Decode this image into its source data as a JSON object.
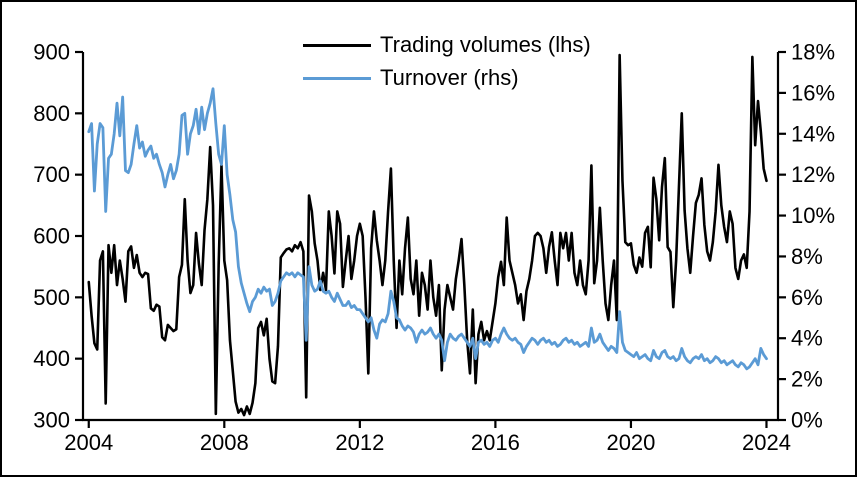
{
  "chart_data": {
    "type": "line",
    "title": "",
    "xlabel": "",
    "ylabel_left": "",
    "ylabel_right": "",
    "grid": false,
    "legend_position": "top-center",
    "x_unit": "year",
    "x_start": 2004,
    "x_step_months": 1,
    "x_range": [
      2003.83,
      2024.34
    ],
    "x_ticks": [
      2004,
      2008,
      2012,
      2016,
      2020,
      2024
    ],
    "x_tick_labels": [
      "2004",
      "2008",
      "2012",
      "2016",
      "2020",
      "2024"
    ],
    "left_axis": {
      "range": [
        300,
        900
      ],
      "tick_values": [
        300,
        400,
        500,
        600,
        700,
        800,
        900
      ],
      "tick_labels": [
        "300",
        "400",
        "500",
        "600",
        "700",
        "800",
        "900"
      ]
    },
    "right_axis": {
      "range": [
        0,
        18
      ],
      "tick_values": [
        0,
        2,
        4,
        6,
        8,
        10,
        12,
        14,
        16,
        18
      ],
      "tick_labels": [
        "0%",
        "2%",
        "4%",
        "6%",
        "8%",
        "10%",
        "12%",
        "14%",
        "16%",
        "18%"
      ]
    },
    "series": [
      {
        "name": "Trading volumes (lhs)",
        "axis": "left",
        "color": "#000000",
        "line_width": 2.6,
        "values": [
          525,
          470,
          425,
          415,
          560,
          575,
          327,
          585,
          540,
          585,
          520,
          560,
          530,
          493,
          575,
          583,
          548,
          569,
          540,
          533,
          540,
          538,
          482,
          478,
          488,
          485,
          435,
          430,
          455,
          450,
          445,
          448,
          533,
          553,
          660,
          560,
          507,
          520,
          605,
          555,
          520,
          610,
          660,
          745,
          650,
          310,
          553,
          715,
          560,
          528,
          430,
          380,
          330,
          312,
          318,
          308,
          322,
          310,
          328,
          360,
          450,
          460,
          438,
          465,
          400,
          363,
          360,
          420,
          565,
          572,
          578,
          580,
          575,
          585,
          580,
          590,
          575,
          337,
          666,
          640,
          588,
          560,
          512,
          540,
          512,
          640,
          600,
          539,
          640,
          620,
          517,
          560,
          600,
          530,
          560,
          600,
          620,
          600,
          500,
          376,
          580,
          640,
          593,
          560,
          520,
          560,
          640,
          710,
          560,
          450,
          560,
          505,
          580,
          630,
          530,
          505,
          560,
          470,
          540,
          520,
          480,
          560,
          500,
          470,
          520,
          381,
          480,
          520,
          500,
          480,
          530,
          560,
          595,
          520,
          430,
          376,
          480,
          360,
          440,
          460,
          430,
          445,
          430,
          460,
          490,
          533,
          558,
          520,
          630,
          560,
          540,
          520,
          490,
          505,
          463,
          510,
          530,
          560,
          600,
          605,
          600,
          580,
          540,
          582,
          606,
          560,
          520,
          605,
          580,
          605,
          560,
          605,
          540,
          520,
          560,
          520,
          505,
          560,
          715,
          523,
          560,
          646,
          560,
          490,
          463,
          520,
          560,
          463,
          895,
          690,
          590,
          585,
          588,
          553,
          540,
          565,
          550,
          605,
          615,
          549,
          695,
          660,
          593,
          680,
          727,
          582,
          574,
          484,
          560,
          680,
          800,
          642,
          580,
          540,
          600,
          654,
          667,
          694,
          618,
          575,
          560,
          590,
          640,
          716,
          650,
          615,
          590,
          640,
          620,
          548,
          530,
          560,
          570,
          548,
          640,
          892,
          748,
          820,
          770,
          710,
          690
        ]
      },
      {
        "name": "Turnover (rhs)",
        "axis": "right",
        "color": "#5B9BD5",
        "line_width": 2.8,
        "values": [
          14.1,
          14.5,
          11.2,
          13.5,
          14.5,
          14.3,
          10.2,
          12.8,
          13.0,
          14.0,
          15.5,
          13.9,
          15.8,
          12.2,
          12.1,
          12.5,
          13.5,
          14.4,
          13.3,
          13.6,
          12.9,
          13.2,
          13.4,
          12.8,
          13.0,
          12.5,
          12.1,
          11.4,
          12.0,
          12.5,
          11.8,
          12.2,
          13.0,
          14.9,
          15.0,
          13.0,
          14.0,
          14.4,
          15.2,
          14.0,
          15.3,
          14.2,
          15.0,
          15.5,
          16.2,
          14.5,
          13.0,
          12.5,
          14.4,
          12.0,
          11.0,
          9.8,
          9.2,
          7.5,
          6.7,
          6.2,
          5.7,
          5.3,
          5.8,
          6.0,
          6.4,
          6.2,
          6.5,
          6.3,
          6.4,
          5.6,
          5.8,
          6.2,
          6.8,
          7.0,
          7.2,
          7.1,
          7.2,
          7.0,
          7.2,
          7.1,
          7.0,
          3.9,
          7.5,
          6.6,
          6.3,
          6.4,
          6.8,
          6.3,
          6.2,
          6.3,
          6.0,
          5.8,
          6.2,
          5.9,
          5.6,
          5.6,
          5.8,
          5.5,
          5.6,
          5.4,
          5.4,
          5.2,
          5.0,
          4.8,
          5.0,
          4.4,
          4.0,
          4.7,
          4.9,
          4.8,
          5.2,
          6.3,
          5.8,
          5.0,
          4.9,
          4.6,
          4.4,
          4.6,
          4.5,
          4.3,
          3.8,
          4.2,
          4.4,
          4.2,
          4.3,
          4.5,
          4.2,
          4.0,
          4.2,
          3.9,
          2.9,
          3.8,
          4.2,
          4.0,
          3.9,
          4.1,
          4.2,
          4.0,
          3.8,
          3.6,
          4.0,
          3.0,
          3.8,
          3.9,
          3.7,
          3.8,
          3.6,
          3.9,
          4.0,
          3.8,
          4.2,
          4.5,
          4.2,
          4.0,
          3.9,
          4.0,
          3.8,
          3.7,
          3.3,
          3.6,
          3.8,
          4.0,
          3.9,
          3.7,
          3.9,
          4.0,
          3.8,
          3.9,
          3.7,
          3.8,
          3.6,
          3.7,
          3.9,
          4.0,
          3.8,
          3.9,
          3.7,
          3.8,
          3.6,
          3.7,
          3.8,
          3.6,
          4.5,
          3.8,
          3.9,
          4.2,
          3.8,
          3.6,
          3.4,
          3.6,
          3.5,
          3.3,
          5.3,
          3.8,
          3.4,
          3.3,
          3.2,
          3.1,
          3.3,
          3.0,
          3.1,
          3.2,
          3.0,
          2.9,
          3.4,
          3.1,
          3.0,
          3.3,
          3.4,
          3.1,
          3.0,
          3.1,
          2.9,
          3.0,
          3.5,
          3.1,
          2.9,
          2.8,
          3.0,
          3.1,
          3.0,
          3.2,
          2.9,
          3.0,
          2.8,
          2.9,
          3.1,
          3.0,
          2.8,
          2.9,
          2.7,
          2.8,
          2.9,
          2.7,
          2.6,
          2.8,
          2.7,
          2.5,
          2.6,
          2.8,
          3.0,
          2.7,
          3.5,
          3.2,
          3.0
        ]
      }
    ]
  },
  "legend": {
    "items": [
      {
        "label": "Trading volumes (lhs)",
        "color": "#000000"
      },
      {
        "label": "Turnover (rhs)",
        "color": "#5B9BD5"
      }
    ]
  }
}
